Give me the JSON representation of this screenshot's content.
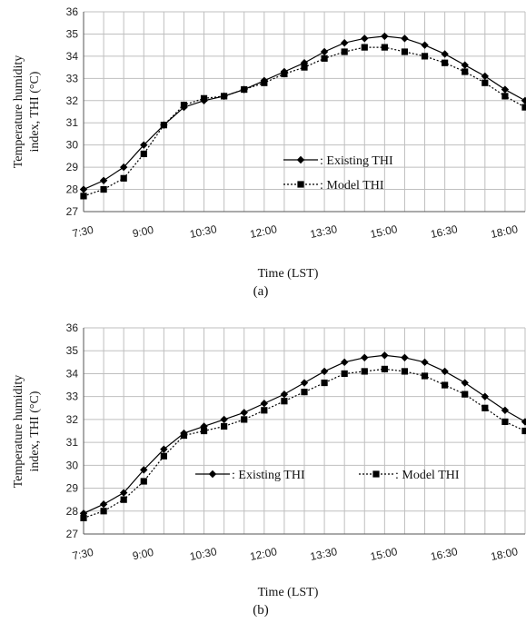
{
  "chart_data": [
    {
      "type": "line",
      "panel_label": "(a)",
      "xlabel": "Time (LST)",
      "ylabel_line1": "Temperature humidity",
      "ylabel_line2": "index, THI (°C)",
      "ylim": [
        27,
        36
      ],
      "yticks": [
        27,
        28,
        29,
        30,
        31,
        32,
        33,
        34,
        35,
        36
      ],
      "categories": [
        "7:30",
        "8:00",
        "8:30",
        "9:00",
        "9:30",
        "10:00",
        "10:30",
        "11:00",
        "11:30",
        "12:00",
        "12:30",
        "13:00",
        "13:30",
        "14:00",
        "14:30",
        "15:00",
        "15:30",
        "16:00",
        "16:30",
        "17:00",
        "17:30",
        "18:00",
        "18:30"
      ],
      "xtick_labels": [
        "7:30",
        "9:00",
        "10:30",
        "12:00",
        "13:30",
        "15:00",
        "16:30",
        "18:00"
      ],
      "grid": true,
      "series": [
        {
          "name": ": Existing THI",
          "marker": "diamond",
          "line": "solid",
          "values": [
            28.0,
            28.4,
            29.0,
            30.0,
            30.9,
            31.7,
            32.0,
            32.2,
            32.5,
            32.9,
            33.3,
            33.7,
            34.2,
            34.6,
            34.8,
            34.9,
            34.8,
            34.5,
            34.1,
            33.6,
            33.1,
            32.5,
            32.0
          ]
        },
        {
          "name": ": Model THI",
          "marker": "square",
          "line": "dotted",
          "values": [
            27.7,
            28.0,
            28.5,
            29.6,
            30.9,
            31.8,
            32.1,
            32.2,
            32.5,
            32.8,
            33.2,
            33.5,
            33.9,
            34.2,
            34.4,
            34.4,
            34.2,
            34.0,
            33.7,
            33.3,
            32.8,
            32.2,
            31.7
          ]
        }
      ]
    },
    {
      "type": "line",
      "panel_label": "(b)",
      "xlabel": "Time (LST)",
      "ylabel_line1": "Temperature humidity",
      "ylabel_line2": "index, THI (°C)",
      "ylim": [
        27,
        36
      ],
      "yticks": [
        27,
        28,
        29,
        30,
        31,
        32,
        33,
        34,
        35,
        36
      ],
      "categories": [
        "7:30",
        "8:00",
        "8:30",
        "9:00",
        "9:30",
        "10:00",
        "10:30",
        "11:00",
        "11:30",
        "12:00",
        "12:30",
        "13:00",
        "13:30",
        "14:00",
        "14:30",
        "15:00",
        "15:30",
        "16:00",
        "16:30",
        "17:00",
        "17:30",
        "18:00",
        "18:30"
      ],
      "xtick_labels": [
        "7:30",
        "9:00",
        "10:30",
        "12:00",
        "13:30",
        "15:00",
        "16:30",
        "18:00"
      ],
      "grid": true,
      "series": [
        {
          "name": ": Existing THI",
          "marker": "diamond",
          "line": "solid",
          "values": [
            27.9,
            28.3,
            28.8,
            29.8,
            30.7,
            31.4,
            31.7,
            32.0,
            32.3,
            32.7,
            33.1,
            33.6,
            34.1,
            34.5,
            34.7,
            34.8,
            34.7,
            34.5,
            34.1,
            33.6,
            33.0,
            32.4,
            31.9
          ]
        },
        {
          "name": ": Model THI",
          "marker": "square",
          "line": "dotted",
          "values": [
            27.7,
            28.0,
            28.5,
            29.3,
            30.4,
            31.3,
            31.5,
            31.7,
            32.0,
            32.4,
            32.8,
            33.2,
            33.6,
            34.0,
            34.1,
            34.2,
            34.1,
            33.9,
            33.5,
            33.1,
            32.5,
            31.9,
            31.5
          ]
        }
      ]
    }
  ]
}
